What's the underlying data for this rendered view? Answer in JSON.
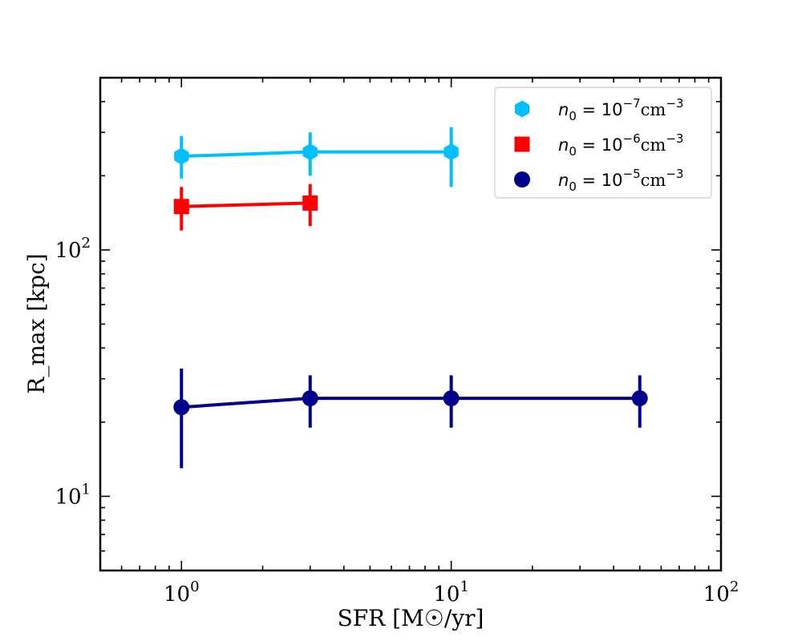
{
  "chart_data": {
    "type": "line",
    "title": "",
    "xlabel": "SFR  [M☉/yr]",
    "ylabel": "R_max  [kpc]",
    "xscale": "log",
    "yscale": "log",
    "xlim": [
      0.5,
      100
    ],
    "ylim": [
      5,
      500
    ],
    "x_ticks": [
      {
        "value": 1,
        "base": "10",
        "exp": "0"
      },
      {
        "value": 10,
        "base": "10",
        "exp": "1"
      },
      {
        "value": 100,
        "base": "10",
        "exp": "2"
      }
    ],
    "y_ticks": [
      {
        "value": 10,
        "base": "10",
        "exp": "1"
      },
      {
        "value": 100,
        "base": "10",
        "exp": "2"
      }
    ],
    "grid": false,
    "legend_position": "top-right",
    "series": [
      {
        "name": "n0 = 10^-7 cm^-3",
        "label_parts": {
          "var": "n",
          "sub": "0",
          "mid": " = 10",
          "exp": "−7",
          "unit": "cm",
          "unit_exp": "−3"
        },
        "color": "#00bfff",
        "marker": "hexagon",
        "x": [
          1,
          3,
          10
        ],
        "y": [
          240,
          250,
          250
        ],
        "yerr_low": [
          195,
          200,
          180
        ],
        "yerr_high": [
          290,
          300,
          315
        ]
      },
      {
        "name": "n0 = 10^-6 cm^-3",
        "label_parts": {
          "var": "n",
          "sub": "0",
          "mid": " = 10",
          "exp": "−6",
          "unit": "cm",
          "unit_exp": "−3"
        },
        "color": "#ff0000",
        "marker": "square",
        "x": [
          1,
          3
        ],
        "y": [
          150,
          155
        ],
        "yerr_low": [
          120,
          125
        ],
        "yerr_high": [
          180,
          185
        ]
      },
      {
        "name": "n0 = 10^-5 cm^-3",
        "label_parts": {
          "var": "n",
          "sub": "0",
          "mid": " = 10",
          "exp": "−5",
          "unit": "cm",
          "unit_exp": "−3"
        },
        "color": "#00008b",
        "marker": "circle",
        "x": [
          1,
          3,
          10,
          50
        ],
        "y": [
          23,
          25,
          25,
          25
        ],
        "yerr_low": [
          13,
          19,
          19,
          19
        ],
        "yerr_high": [
          33,
          31,
          31,
          31
        ]
      }
    ]
  }
}
